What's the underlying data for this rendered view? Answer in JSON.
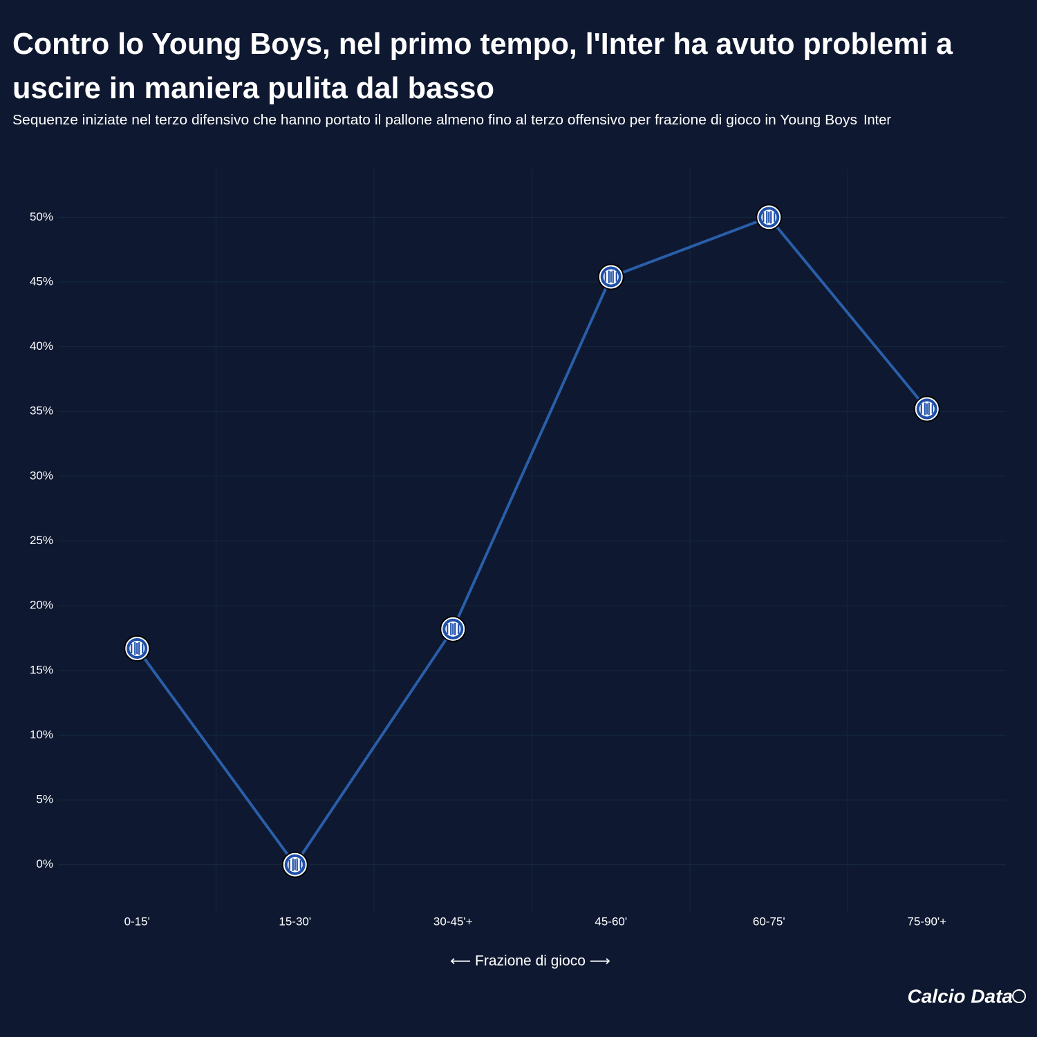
{
  "chart_data": {
    "type": "line",
    "title": [
      "Contro lo Young Boys, nel primo tempo, l'Inter ha avuto problemi a",
      "uscire in maniera pulita dal basso"
    ],
    "subtitle": "Sequenze iniziate nel terzo difensivo che hanno portato il pallone almeno fino al terzo offensivo per frazione di gioco in Young Boys",
    "x_label": "⟵ Frazione di gioco ⟶",
    "categories": [
      "0-15'",
      "15-30'",
      "30-45'+",
      "45-60'",
      "60-75'",
      "75-90'+"
    ],
    "series": [
      {
        "name": "Inter",
        "color": "#2a5ea8",
        "values": [
          16.7,
          0,
          18.2,
          45.4,
          50,
          35.2
        ]
      }
    ],
    "ylim": [
      -3.7,
      53.7
    ],
    "yticks": [
      {
        "value": 0,
        "label": "0%"
      },
      {
        "value": 5,
        "label": "5%"
      },
      {
        "value": 10,
        "label": "10%"
      },
      {
        "value": 15,
        "label": "15%"
      },
      {
        "value": 20,
        "label": "20%"
      },
      {
        "value": 25,
        "label": "25%"
      },
      {
        "value": 30,
        "label": "30%"
      },
      {
        "value": 35,
        "label": "35%"
      },
      {
        "value": 40,
        "label": "40%"
      },
      {
        "value": 45,
        "label": "45%"
      },
      {
        "value": 50,
        "label": "50%"
      }
    ],
    "grid": true,
    "brand": "Calcio Data"
  }
}
